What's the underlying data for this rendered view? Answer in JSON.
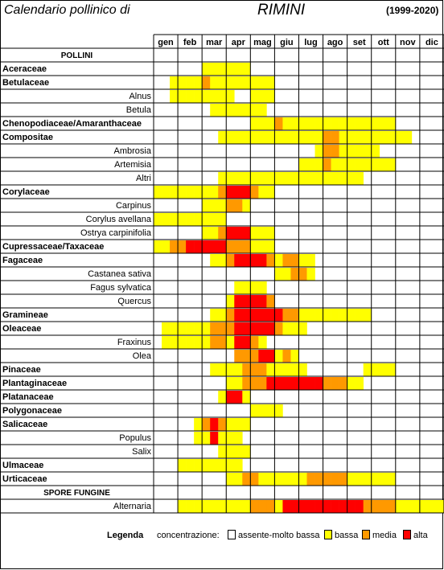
{
  "header": {
    "title": "Calendario pollinico di",
    "city": "RIMINI",
    "years": "(1999-2020)"
  },
  "chart_data": {
    "type": "heatmap",
    "months": [
      "gen",
      "feb",
      "mar",
      "apr",
      "mag",
      "giu",
      "lug",
      "ago",
      "set",
      "ott",
      "nov",
      "dic"
    ],
    "decades_per_month": 3,
    "value_scale": {
      "0": "assente-molto bassa",
      "1": "bassa",
      "2": "media",
      "3": "alta"
    },
    "colors": {
      "0": "#FFFFFF",
      "1": "#FFFF00",
      "2": "#FF9900",
      "3": "#FF0000"
    },
    "rows": [
      {
        "label": "POLLINI",
        "kind": "header",
        "values": []
      },
      {
        "label": "Aceraceae",
        "kind": "family",
        "values": [
          0,
          0,
          0,
          0,
          0,
          0,
          1,
          1,
          1,
          1,
          1,
          1,
          0,
          0,
          0,
          0,
          0,
          0,
          0,
          0,
          0,
          0,
          0,
          0,
          0,
          0,
          0,
          0,
          0,
          0,
          0,
          0,
          0,
          0,
          0,
          0
        ]
      },
      {
        "label": "Betulaceae",
        "kind": "family",
        "values": [
          0,
          0,
          1,
          1,
          1,
          1,
          2,
          1,
          1,
          1,
          1,
          1,
          1,
          1,
          1,
          0,
          0,
          0,
          0,
          0,
          0,
          0,
          0,
          0,
          0,
          0,
          0,
          0,
          0,
          0,
          0,
          0,
          0,
          0,
          0,
          0
        ]
      },
      {
        "label": "Alnus",
        "kind": "species",
        "values": [
          0,
          0,
          1,
          1,
          1,
          1,
          1,
          1,
          1,
          1,
          0,
          0,
          1,
          1,
          1,
          0,
          0,
          0,
          0,
          0,
          0,
          0,
          0,
          0,
          0,
          0,
          0,
          0,
          0,
          0,
          0,
          0,
          0,
          0,
          0,
          0
        ]
      },
      {
        "label": "Betula",
        "kind": "species",
        "values": [
          0,
          0,
          0,
          0,
          0,
          0,
          0,
          1,
          1,
          1,
          1,
          1,
          1,
          1,
          0,
          0,
          0,
          0,
          0,
          0,
          0,
          0,
          0,
          0,
          0,
          0,
          0,
          0,
          0,
          0,
          0,
          0,
          0,
          0,
          0,
          0
        ]
      },
      {
        "label": "Chenopodiaceae/Amaranthaceae",
        "kind": "family",
        "values": [
          0,
          0,
          0,
          0,
          0,
          0,
          0,
          0,
          0,
          0,
          0,
          0,
          1,
          1,
          1,
          2,
          1,
          1,
          1,
          1,
          1,
          1,
          1,
          1,
          1,
          1,
          1,
          1,
          1,
          1,
          0,
          0,
          0,
          0,
          0,
          0
        ]
      },
      {
        "label": "Compositae",
        "kind": "family",
        "values": [
          0,
          0,
          0,
          0,
          0,
          0,
          0,
          0,
          1,
          1,
          1,
          1,
          1,
          1,
          1,
          1,
          1,
          1,
          1,
          1,
          1,
          2,
          2,
          1,
          1,
          1,
          1,
          1,
          1,
          1,
          1,
          1,
          0,
          0,
          0,
          0
        ]
      },
      {
        "label": "Ambrosia",
        "kind": "species",
        "values": [
          0,
          0,
          0,
          0,
          0,
          0,
          0,
          0,
          0,
          0,
          0,
          0,
          0,
          0,
          0,
          0,
          0,
          0,
          0,
          0,
          1,
          2,
          2,
          1,
          1,
          1,
          1,
          1,
          0,
          0,
          0,
          0,
          0,
          0,
          0,
          0
        ]
      },
      {
        "label": "Artemisia",
        "kind": "species",
        "values": [
          0,
          0,
          0,
          0,
          0,
          0,
          0,
          0,
          0,
          0,
          0,
          0,
          0,
          0,
          0,
          0,
          0,
          0,
          1,
          1,
          1,
          2,
          1,
          1,
          1,
          1,
          1,
          1,
          1,
          1,
          0,
          0,
          0,
          0,
          0,
          0
        ]
      },
      {
        "label": "Altri",
        "kind": "species",
        "values": [
          0,
          0,
          0,
          0,
          0,
          0,
          0,
          0,
          1,
          1,
          1,
          1,
          1,
          1,
          1,
          1,
          1,
          1,
          1,
          1,
          1,
          1,
          1,
          1,
          1,
          1,
          0,
          0,
          0,
          0,
          0,
          0,
          0,
          0,
          0,
          0
        ]
      },
      {
        "label": "Corylaceae",
        "kind": "family",
        "values": [
          1,
          1,
          1,
          1,
          1,
          1,
          1,
          1,
          2,
          3,
          3,
          3,
          2,
          1,
          1,
          0,
          0,
          0,
          0,
          0,
          0,
          0,
          0,
          0,
          0,
          0,
          0,
          0,
          0,
          0,
          0,
          0,
          0,
          0,
          0,
          0
        ]
      },
      {
        "label": "Carpinus",
        "kind": "species",
        "values": [
          0,
          0,
          0,
          0,
          0,
          0,
          1,
          1,
          1,
          2,
          2,
          1,
          0,
          0,
          0,
          0,
          0,
          0,
          0,
          0,
          0,
          0,
          0,
          0,
          0,
          0,
          0,
          0,
          0,
          0,
          0,
          0,
          0,
          0,
          0,
          0
        ]
      },
      {
        "label": "Corylus avellana",
        "kind": "species",
        "values": [
          1,
          1,
          1,
          1,
          1,
          1,
          1,
          1,
          1,
          0,
          0,
          0,
          0,
          0,
          0,
          0,
          0,
          0,
          0,
          0,
          0,
          0,
          0,
          0,
          0,
          0,
          0,
          0,
          0,
          0,
          0,
          0,
          0,
          0,
          0,
          0
        ]
      },
      {
        "label": "Ostrya carpinifolia",
        "kind": "species",
        "values": [
          0,
          0,
          0,
          0,
          0,
          0,
          1,
          1,
          2,
          3,
          3,
          3,
          1,
          1,
          1,
          0,
          0,
          0,
          0,
          0,
          0,
          0,
          0,
          0,
          0,
          0,
          0,
          0,
          0,
          0,
          0,
          0,
          0,
          0,
          0,
          0
        ]
      },
      {
        "label": "Cupressaceae/Taxaceae",
        "kind": "family",
        "values": [
          1,
          1,
          2,
          2,
          3,
          3,
          3,
          3,
          3,
          2,
          2,
          2,
          1,
          1,
          1,
          0,
          0,
          0,
          0,
          0,
          0,
          0,
          0,
          0,
          0,
          0,
          0,
          0,
          0,
          0,
          0,
          0,
          0,
          0,
          0,
          0
        ]
      },
      {
        "label": "Fagaceae",
        "kind": "family",
        "values": [
          0,
          0,
          0,
          0,
          0,
          0,
          0,
          1,
          1,
          2,
          3,
          3,
          3,
          3,
          2,
          1,
          2,
          2,
          1,
          1,
          0,
          0,
          0,
          0,
          0,
          0,
          0,
          0,
          0,
          0,
          0,
          0,
          0,
          0,
          0,
          0
        ]
      },
      {
        "label": "Castanea sativa",
        "kind": "species",
        "values": [
          0,
          0,
          0,
          0,
          0,
          0,
          0,
          0,
          0,
          0,
          0,
          0,
          0,
          0,
          0,
          1,
          1,
          2,
          2,
          1,
          0,
          0,
          0,
          0,
          0,
          0,
          0,
          0,
          0,
          0,
          0,
          0,
          0,
          0,
          0,
          0
        ]
      },
      {
        "label": "Fagus sylvatica",
        "kind": "species",
        "values": [
          0,
          0,
          0,
          0,
          0,
          0,
          0,
          0,
          0,
          0,
          1,
          1,
          1,
          1,
          0,
          0,
          0,
          0,
          0,
          0,
          0,
          0,
          0,
          0,
          0,
          0,
          0,
          0,
          0,
          0,
          0,
          0,
          0,
          0,
          0,
          0
        ]
      },
      {
        "label": "Quercus",
        "kind": "species",
        "values": [
          0,
          0,
          0,
          0,
          0,
          0,
          0,
          0,
          0,
          1,
          3,
          3,
          3,
          3,
          2,
          0,
          0,
          0,
          0,
          0,
          0,
          0,
          0,
          0,
          0,
          0,
          0,
          0,
          0,
          0,
          0,
          0,
          0,
          0,
          0,
          0
        ]
      },
      {
        "label": "Gramineae",
        "kind": "family",
        "values": [
          0,
          0,
          0,
          0,
          0,
          0,
          0,
          1,
          1,
          2,
          3,
          3,
          3,
          3,
          3,
          3,
          2,
          2,
          1,
          1,
          1,
          1,
          1,
          1,
          1,
          1,
          1,
          0,
          0,
          0,
          0,
          0,
          0,
          0,
          0,
          0
        ]
      },
      {
        "label": "Oleaceae",
        "kind": "family",
        "values": [
          0,
          1,
          1,
          1,
          1,
          1,
          1,
          2,
          2,
          2,
          3,
          3,
          3,
          3,
          3,
          2,
          1,
          1,
          1,
          0,
          0,
          0,
          0,
          0,
          0,
          0,
          0,
          0,
          0,
          0,
          0,
          0,
          0,
          0,
          0,
          0
        ]
      },
      {
        "label": "Fraxinus",
        "kind": "species",
        "values": [
          0,
          1,
          1,
          1,
          1,
          1,
          1,
          2,
          2,
          1,
          3,
          3,
          2,
          1,
          0,
          0,
          0,
          0,
          0,
          0,
          0,
          0,
          0,
          0,
          0,
          0,
          0,
          0,
          0,
          0,
          0,
          0,
          0,
          0,
          0,
          0
        ]
      },
      {
        "label": "Olea",
        "kind": "species",
        "values": [
          0,
          0,
          0,
          0,
          0,
          0,
          0,
          0,
          0,
          0,
          2,
          2,
          2,
          3,
          3,
          1,
          2,
          1,
          0,
          0,
          0,
          0,
          0,
          0,
          0,
          0,
          0,
          0,
          0,
          0,
          0,
          0,
          0,
          0,
          0,
          0
        ]
      },
      {
        "label": "Pinaceae",
        "kind": "family",
        "values": [
          0,
          0,
          0,
          0,
          0,
          0,
          0,
          1,
          1,
          1,
          1,
          2,
          2,
          2,
          1,
          1,
          1,
          1,
          1,
          0,
          0,
          0,
          0,
          0,
          0,
          0,
          1,
          1,
          1,
          1,
          0,
          0,
          0,
          0,
          0,
          0
        ]
      },
      {
        "label": "Plantaginaceae",
        "kind": "family",
        "values": [
          0,
          0,
          0,
          0,
          0,
          0,
          0,
          0,
          0,
          1,
          1,
          2,
          2,
          2,
          3,
          3,
          3,
          3,
          3,
          3,
          3,
          2,
          2,
          2,
          1,
          1,
          0,
          0,
          0,
          0,
          0,
          0,
          0,
          0,
          0,
          0
        ]
      },
      {
        "label": "Platanaceae",
        "kind": "family",
        "values": [
          0,
          0,
          0,
          0,
          0,
          0,
          0,
          0,
          1,
          3,
          3,
          1,
          0,
          0,
          0,
          0,
          0,
          0,
          0,
          0,
          0,
          0,
          0,
          0,
          0,
          0,
          0,
          0,
          0,
          0,
          0,
          0,
          0,
          0,
          0,
          0
        ]
      },
      {
        "label": "Polygonaceae",
        "kind": "family",
        "values": [
          0,
          0,
          0,
          0,
          0,
          0,
          0,
          0,
          0,
          0,
          0,
          0,
          1,
          1,
          1,
          1,
          0,
          0,
          0,
          0,
          0,
          0,
          0,
          0,
          0,
          0,
          0,
          0,
          0,
          0,
          0,
          0,
          0,
          0,
          0,
          0
        ]
      },
      {
        "label": "Salicaceae",
        "kind": "family",
        "values": [
          0,
          0,
          0,
          0,
          0,
          1,
          2,
          3,
          2,
          1,
          1,
          1,
          0,
          0,
          0,
          0,
          0,
          0,
          0,
          0,
          0,
          0,
          0,
          0,
          0,
          0,
          0,
          0,
          0,
          0,
          0,
          0,
          0,
          0,
          0,
          0
        ]
      },
      {
        "label": "Populus",
        "kind": "species",
        "values": [
          0,
          0,
          0,
          0,
          0,
          1,
          1,
          3,
          1,
          1,
          1,
          0,
          0,
          0,
          0,
          0,
          0,
          0,
          0,
          0,
          0,
          0,
          0,
          0,
          0,
          0,
          0,
          0,
          0,
          0,
          0,
          0,
          0,
          0,
          0,
          0
        ]
      },
      {
        "label": "Salix",
        "kind": "species",
        "values": [
          0,
          0,
          0,
          0,
          0,
          0,
          0,
          0,
          1,
          1,
          1,
          1,
          0,
          0,
          0,
          0,
          0,
          0,
          0,
          0,
          0,
          0,
          0,
          0,
          0,
          0,
          0,
          0,
          0,
          0,
          0,
          0,
          0,
          0,
          0,
          0
        ]
      },
      {
        "label": "Ulmaceae",
        "kind": "family",
        "values": [
          0,
          0,
          0,
          1,
          1,
          1,
          1,
          1,
          1,
          1,
          1,
          0,
          0,
          0,
          0,
          0,
          0,
          0,
          0,
          0,
          0,
          0,
          0,
          0,
          0,
          0,
          0,
          0,
          0,
          0,
          0,
          0,
          0,
          0,
          0,
          0
        ]
      },
      {
        "label": "Urticaceae",
        "kind": "family",
        "values": [
          0,
          0,
          0,
          0,
          0,
          0,
          0,
          0,
          0,
          1,
          1,
          2,
          2,
          1,
          1,
          1,
          1,
          1,
          1,
          2,
          2,
          2,
          2,
          2,
          1,
          1,
          1,
          1,
          1,
          1,
          0,
          0,
          0,
          0,
          0,
          0
        ]
      },
      {
        "label": "SPORE FUNGINE",
        "kind": "header",
        "values": []
      },
      {
        "label": "Alternaria",
        "kind": "species",
        "values": [
          0,
          0,
          0,
          1,
          1,
          1,
          1,
          1,
          1,
          1,
          1,
          1,
          2,
          2,
          2,
          1,
          3,
          3,
          3,
          3,
          3,
          3,
          3,
          3,
          3,
          3,
          2,
          2,
          2,
          2,
          1,
          1,
          1,
          1,
          1,
          1
        ]
      }
    ]
  },
  "legend": {
    "title": "Legenda",
    "subtitle": "concentrazione:",
    "items": [
      {
        "label": "assente-molto bassa",
        "color": "#FFFFFF"
      },
      {
        "label": "bassa",
        "color": "#FFFF00"
      },
      {
        "label": "media",
        "color": "#FF9900"
      },
      {
        "label": "alta",
        "color": "#FF0000"
      }
    ]
  }
}
